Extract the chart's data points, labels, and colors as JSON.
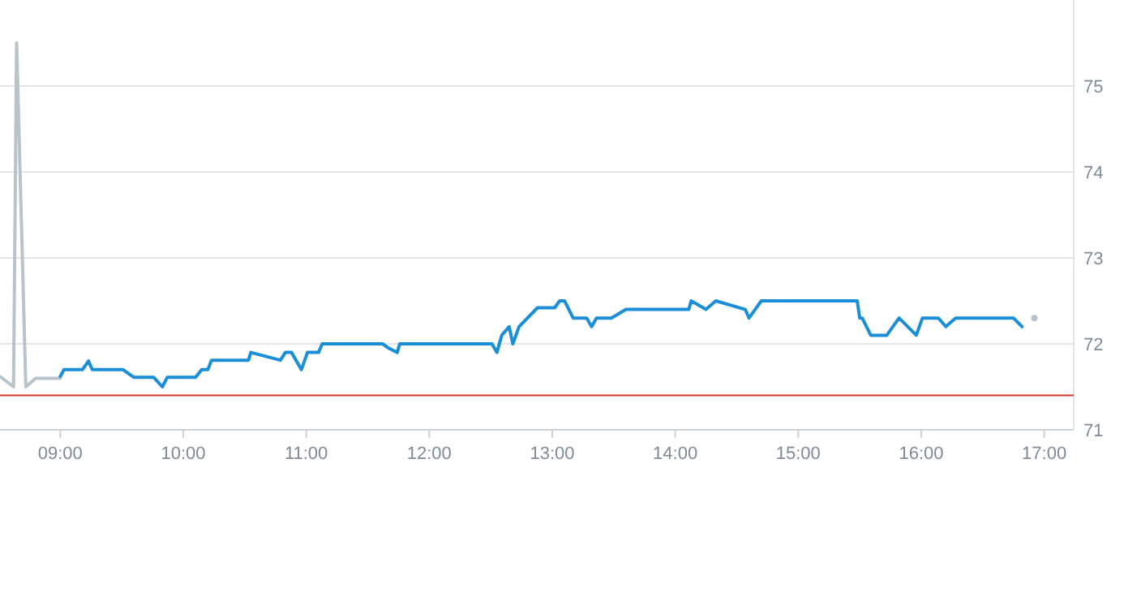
{
  "chart_data": {
    "type": "line",
    "xlim": [
      8.51,
      17.24
    ],
    "ylim": [
      71,
      76
    ],
    "xticks": [
      {
        "value": 9,
        "label": "09:00"
      },
      {
        "value": 10,
        "label": "10:00"
      },
      {
        "value": 11,
        "label": "11:00"
      },
      {
        "value": 12,
        "label": "12:00"
      },
      {
        "value": 13,
        "label": "13:00"
      },
      {
        "value": 14,
        "label": "14:00"
      },
      {
        "value": 15,
        "label": "15:00"
      },
      {
        "value": 16,
        "label": "16:00"
      },
      {
        "value": 17,
        "label": "17:00"
      }
    ],
    "yticks": [
      71,
      72,
      73,
      74,
      75
    ],
    "grid": "y",
    "marker": "none",
    "line_style": "solid",
    "ref_lines": [
      {
        "axis": "y",
        "value": 71.4,
        "color": "#d23a2e"
      }
    ],
    "series": [
      {
        "color": "#b8c4cc",
        "x": [
          8.51,
          8.62,
          8.645,
          8.72,
          8.8,
          9.0
        ],
        "values": [
          71.62,
          71.5,
          75.5,
          71.5,
          71.6,
          71.6
        ]
      },
      {
        "color": "#1a8fd8",
        "x": [
          9.0,
          9.03,
          9.18,
          9.23,
          9.26,
          9.51,
          9.6,
          9.76,
          9.83,
          9.87,
          10.1,
          10.15,
          10.2,
          10.23,
          10.53,
          10.55,
          10.79,
          10.83,
          10.88,
          10.96,
          11.01,
          11.1,
          11.13,
          11.62,
          11.67,
          11.74,
          11.76,
          12.51,
          12.55,
          12.59,
          12.65,
          12.68,
          12.73,
          12.88,
          13.02,
          13.06,
          13.1,
          13.17,
          13.28,
          13.32,
          13.36,
          13.48,
          13.6,
          14.11,
          14.13,
          14.25,
          14.33,
          14.57,
          14.6,
          14.7,
          15.48,
          15.5,
          15.52,
          15.59,
          15.72,
          15.82,
          15.96,
          16.01,
          16.14,
          16.2,
          16.28,
          16.75,
          16.82
        ],
        "values": [
          71.62,
          71.7,
          71.7,
          71.8,
          71.7,
          71.7,
          71.61,
          71.61,
          71.5,
          71.61,
          71.61,
          71.7,
          71.7,
          71.81,
          71.81,
          71.9,
          71.81,
          71.9,
          71.9,
          71.7,
          71.9,
          71.9,
          72.0,
          72.0,
          71.95,
          71.9,
          72.0,
          72.0,
          71.9,
          72.1,
          72.2,
          72.0,
          72.2,
          72.42,
          72.42,
          72.5,
          72.5,
          72.3,
          72.3,
          72.2,
          72.3,
          72.3,
          72.4,
          72.4,
          72.5,
          72.4,
          72.5,
          72.4,
          72.3,
          72.5,
          72.5,
          72.3,
          72.3,
          72.1,
          72.1,
          72.3,
          72.1,
          72.3,
          72.3,
          72.2,
          72.3,
          72.3,
          72.2
        ]
      },
      {
        "type": "scatter",
        "marker": "circle",
        "color": "#b8c4cc",
        "x": [
          16.92
        ],
        "values": [
          72.3
        ]
      }
    ]
  }
}
